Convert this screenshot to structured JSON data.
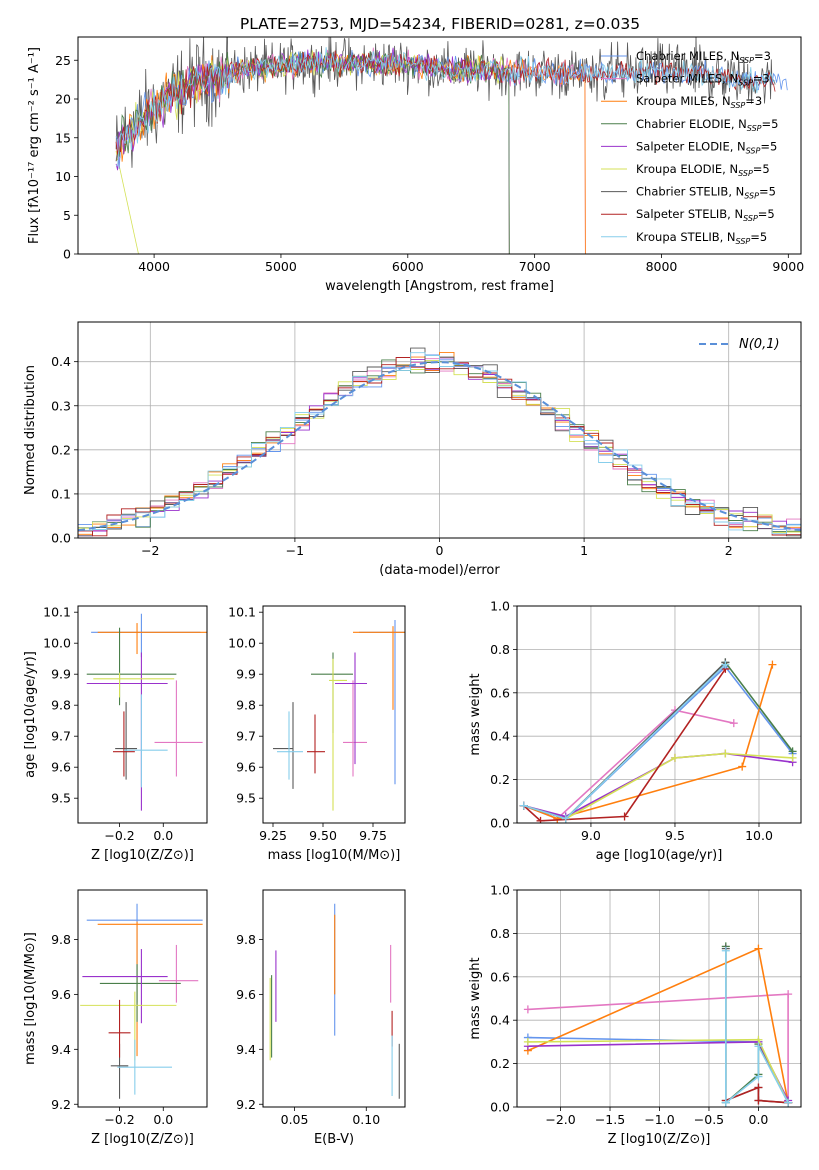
{
  "figure": {
    "title": "PLATE=2753, MJD=54234, FIBERID=0281, z=0.035",
    "colors": [
      "#6495ed",
      "#e377c2",
      "#ff7f0e",
      "#4a7f4a",
      "#9932cc",
      "#d4e157",
      "#5a5a5a",
      "#b22222",
      "#87ceeb"
    ]
  },
  "chart_data": [
    {
      "id": "spectrum",
      "type": "line",
      "xlabel": "wavelength [Angstrom, rest frame]",
      "ylabel": "Flux [fλ10⁻¹⁷ erg cm⁻² s⁻¹ A⁻¹]",
      "xlim": [
        3400,
        9100
      ],
      "ylim": [
        0,
        28
      ],
      "xticks": [
        4000,
        5000,
        6000,
        7000,
        8000,
        9000
      ],
      "yticks": [
        0,
        5,
        10,
        15,
        20,
        25
      ],
      "legend": "top-right",
      "continuum": {
        "x": [
          3700,
          3800,
          3900,
          4000,
          4100,
          4200,
          4300,
          4400,
          4500,
          4600,
          4800,
          5000,
          5200,
          5400,
          5600,
          5800,
          6000,
          6200,
          6400,
          6600,
          6800,
          7000,
          7200,
          7400,
          7600,
          7800,
          8000,
          8200,
          8400,
          8600,
          8800
        ],
        "y": [
          13,
          16,
          17,
          19,
          20,
          21,
          22,
          22.5,
          23,
          23.5,
          24,
          24.2,
          24.5,
          24.8,
          24.6,
          24.7,
          24.5,
          24,
          23.7,
          23.8,
          23.6,
          23.5,
          23.3,
          23.2,
          23.4,
          23.5,
          23.6,
          23.3,
          23,
          22.6,
          22.3
        ]
      },
      "series": [
        {
          "name": "Chabrier MILES, N_SSP=3",
          "end": 9000
        },
        {
          "name": "Salpeter MILES, N_SSP=3",
          "end": 7400
        },
        {
          "name": "Kroupa MILES, N_SSP=3",
          "end": 7400
        },
        {
          "name": "Chabrier ELODIE, N_SSP=5",
          "end": 6800
        },
        {
          "name": "Salpeter ELODIE, N_SSP=5",
          "end": 6800
        },
        {
          "name": "Kroupa ELODIE, N_SSP=5",
          "end": 6800
        },
        {
          "name": "Chabrier STELIB, N_SSP=5",
          "end": 8900
        },
        {
          "name": "Salpeter STELIB, N_SSP=5",
          "end": 8900
        },
        {
          "name": "Kroupa STELIB, N_SSP=5",
          "end": 8900
        }
      ]
    },
    {
      "id": "residuals",
      "type": "histogram",
      "xlabel": "(data-model)/error",
      "ylabel": "Normed distribution",
      "xlim": [
        -2.5,
        2.5
      ],
      "ylim": [
        0,
        0.49
      ],
      "xticks": [
        -2,
        -1,
        0,
        1,
        2
      ],
      "yticks": [
        0.0,
        0.1,
        0.2,
        0.3,
        0.4
      ],
      "grid": true,
      "legend_label": "N(0,1)",
      "bin_width": 0.1,
      "bin_start": -2.5
    },
    {
      "id": "age_vs_Z",
      "type": "errorbar",
      "xlabel": "Z [log10(Z/Z⊙)]",
      "ylabel": "age  [log10(age/yr)]",
      "xlim": [
        -0.39,
        0.2
      ],
      "ylim": [
        9.42,
        10.12
      ],
      "xticks": [
        -0.2,
        0.0
      ],
      "yticks": [
        9.5,
        9.6,
        9.7,
        9.8,
        9.9,
        10.0,
        10.1
      ],
      "points": [
        {
          "x": -0.1,
          "xerr": [
            0.23,
            0.27
          ],
          "y": 10.035,
          "yerr": [
            0.08,
            0.06
          ]
        },
        {
          "x": 0.06,
          "xerr": [
            0.1,
            0.12
          ],
          "y": 9.68,
          "yerr": [
            0.11,
            0.2
          ]
        },
        {
          "x": -0.12,
          "xerr": [
            0.18,
            0.32
          ],
          "y": 10.035,
          "yerr": [
            0.07,
            0.03
          ]
        },
        {
          "x": -0.2,
          "xerr": [
            0.15,
            0.26
          ],
          "y": 9.9,
          "yerr": [
            0.1,
            0.15
          ]
        },
        {
          "x": -0.1,
          "xerr": [
            0.25,
            0.12
          ],
          "y": 9.87,
          "yerr": [
            0.41,
            0.1
          ]
        },
        {
          "x": -0.2,
          "xerr": [
            0.12,
            0.25
          ],
          "y": 9.885,
          "yerr": [
            0.06,
            0.02
          ]
        },
        {
          "x": -0.17,
          "xerr": [
            0.05,
            0.05
          ],
          "y": 9.66,
          "yerr": [
            0.1,
            0.15
          ]
        },
        {
          "x": -0.18,
          "xerr": [
            0.05,
            0.05
          ],
          "y": 9.65,
          "yerr": [
            0.08,
            0.13
          ]
        },
        {
          "x": -0.1,
          "xerr": [
            0.08,
            0.12
          ],
          "y": 9.655,
          "yerr": [
            0.12,
            0.18
          ]
        }
      ]
    },
    {
      "id": "age_vs_mass",
      "type": "errorbar",
      "xlabel": "mass [log10(M/M⊙)]",
      "ylabel": "",
      "xlim": [
        9.2,
        9.91
      ],
      "ylim": [
        9.42,
        10.12
      ],
      "xticks": [
        9.25,
        9.5,
        9.75
      ],
      "yticks": [
        9.5,
        9.6,
        9.7,
        9.8,
        9.9,
        10.0,
        10.1
      ],
      "points": [
        {
          "x": 9.86,
          "xerr": [
            0.18,
            0.12
          ],
          "y": 10.035,
          "yerr": [
            0.49,
            0.04
          ]
        },
        {
          "x": 9.65,
          "xerr": [
            0.05,
            0.07
          ],
          "y": 9.68,
          "yerr": [
            0.11,
            0.2
          ]
        },
        {
          "x": 9.85,
          "xerr": [
            0.2,
            0.1
          ],
          "y": 10.035,
          "yerr": [
            0.25,
            0.02
          ]
        },
        {
          "x": 9.55,
          "xerr": [
            0.11,
            0.1
          ],
          "y": 9.9,
          "yerr": [
            0.19,
            0.07
          ]
        },
        {
          "x": 9.66,
          "xerr": [
            0.1,
            0.06
          ],
          "y": 9.87,
          "yerr": [
            0.26,
            0.1
          ]
        },
        {
          "x": 9.55,
          "xerr": [
            0.02,
            0.07
          ],
          "y": 9.88,
          "yerr": [
            0.42,
            0.07
          ]
        },
        {
          "x": 9.35,
          "xerr": [
            0.1,
            0.0
          ],
          "y": 9.66,
          "yerr": [
            0.13,
            0.15
          ]
        },
        {
          "x": 9.46,
          "xerr": [
            0.04,
            0.05
          ],
          "y": 9.65,
          "yerr": [
            0.07,
            0.12
          ]
        },
        {
          "x": 9.33,
          "xerr": [
            0.06,
            0.07
          ],
          "y": 9.65,
          "yerr": [
            0.09,
            0.13
          ]
        }
      ]
    },
    {
      "id": "weight_vs_age",
      "type": "line",
      "xlabel": "age  [log10(age/yr)]",
      "ylabel": "mass weight",
      "xlim": [
        8.56,
        10.25
      ],
      "ylim": [
        0,
        1
      ],
      "xticks": [
        9.0,
        9.5,
        10.0
      ],
      "yticks": [
        0.0,
        0.2,
        0.4,
        0.6,
        0.8,
        1.0
      ],
      "grid": true,
      "series": [
        {
          "x": [
            8.6,
            8.85,
            9.8,
            10.2
          ],
          "y": [
            0.08,
            0.02,
            0.72,
            0.32
          ]
        },
        {
          "x": [
            8.6,
            8.8,
            9.5,
            9.85
          ],
          "y": [
            0.08,
            0.02,
            0.52,
            0.46
          ]
        },
        {
          "x": [
            8.6,
            8.8,
            9.9,
            10.08
          ],
          "y": [
            0.08,
            0.02,
            0.26,
            0.73
          ]
        },
        {
          "x": [
            8.6,
            8.85,
            9.8,
            10.2
          ],
          "y": [
            0.08,
            0.02,
            0.74,
            0.33
          ]
        },
        {
          "x": [
            8.6,
            8.85,
            9.5,
            9.8,
            10.2
          ],
          "y": [
            0.08,
            0.03,
            0.3,
            0.32,
            0.28
          ]
        },
        {
          "x": [
            8.6,
            8.85,
            9.5,
            9.8,
            10.2
          ],
          "y": [
            0.08,
            0.02,
            0.3,
            0.32,
            0.3
          ]
        },
        {
          "x": [
            8.6,
            8.85,
            9.8
          ],
          "y": [
            0.08,
            0.02,
            0.74
          ]
        },
        {
          "x": [
            8.6,
            8.7,
            9.2,
            9.8
          ],
          "y": [
            0.08,
            0.01,
            0.03,
            0.71
          ]
        },
        {
          "x": [
            8.6,
            8.85,
            9.8
          ],
          "y": [
            0.08,
            0.02,
            0.73
          ]
        }
      ]
    },
    {
      "id": "mass_vs_Z",
      "type": "errorbar",
      "xlabel": "Z [log10(Z/Z⊙)]",
      "ylabel": "mass [log10(M/M⊙)]",
      "xlim": [
        -0.39,
        0.2
      ],
      "ylim": [
        9.19,
        9.98
      ],
      "xticks": [
        -0.2,
        0.0
      ],
      "yticks": [
        9.2,
        9.4,
        9.6,
        9.8
      ],
      "points": [
        {
          "x": -0.12,
          "xerr": [
            0.23,
            0.3
          ],
          "y": 9.87,
          "yerr": [
            0.3,
            0.06
          ]
        },
        {
          "x": 0.06,
          "xerr": [
            0.08,
            0.1
          ],
          "y": 9.65,
          "yerr": [
            0.08,
            0.13
          ]
        },
        {
          "x": -0.12,
          "xerr": [
            0.18,
            0.3
          ],
          "y": 9.855,
          "yerr": [
            0.48,
            0.01
          ]
        },
        {
          "x": -0.12,
          "xerr": [
            0.17,
            0.2
          ],
          "y": 9.64,
          "yerr": [
            0.14,
            0.07
          ]
        },
        {
          "x": -0.1,
          "xerr": [
            0.27,
            0.12
          ],
          "y": 9.665,
          "yerr": [
            0.17,
            0.1
          ]
        },
        {
          "x": -0.13,
          "xerr": [
            0.25,
            0.19
          ],
          "y": 9.56,
          "yerr": [
            0.2,
            0.05
          ]
        },
        {
          "x": -0.2,
          "xerr": [
            0.04,
            0.04
          ],
          "y": 9.34,
          "yerr": [
            0.12,
            0.08
          ]
        },
        {
          "x": -0.2,
          "xerr": [
            0.05,
            0.05
          ],
          "y": 9.46,
          "yerr": [
            0.09,
            0.12
          ]
        },
        {
          "x": -0.13,
          "xerr": [
            0.08,
            0.17
          ],
          "y": 9.335,
          "yerr": [
            0.1,
            0.1
          ]
        }
      ]
    },
    {
      "id": "mass_vs_EBV",
      "type": "errorbar",
      "xlabel": "E(B-V)",
      "ylabel": "",
      "xlim": [
        0.028,
        0.127
      ],
      "ylim": [
        9.19,
        9.98
      ],
      "xticks": [
        0.05,
        0.1
      ],
      "yticks": [
        9.2,
        9.4,
        9.6,
        9.8
      ],
      "points": [
        {
          "x": 0.078,
          "y": 9.65,
          "yerr": [
            0.2,
            0.28
          ]
        },
        {
          "x": 0.117,
          "y": 9.65,
          "yerr": [
            0.08,
            0.13
          ]
        },
        {
          "x": 0.078,
          "y": 9.8,
          "yerr": [
            0.2,
            0.09
          ]
        },
        {
          "x": 0.034,
          "y": 9.55,
          "yerr": [
            0.18,
            0.12
          ]
        },
        {
          "x": 0.037,
          "y": 9.63,
          "yerr": [
            0.13,
            0.13
          ]
        },
        {
          "x": 0.033,
          "y": 9.5,
          "yerr": [
            0.14,
            0.16
          ]
        },
        {
          "x": 0.123,
          "y": 9.32,
          "yerr": [
            0.1,
            0.1
          ]
        },
        {
          "x": 0.118,
          "y": 9.47,
          "yerr": [
            0.06,
            0.07
          ]
        },
        {
          "x": 0.118,
          "y": 9.33,
          "yerr": [
            0.1,
            0.12
          ]
        }
      ]
    },
    {
      "id": "weight_vs_Z",
      "type": "line",
      "xlabel": "Z [log10(Z/Z⊙)]",
      "ylabel": "mass weight",
      "xlim": [
        -2.44,
        0.43
      ],
      "ylim": [
        0,
        1
      ],
      "xticks": [
        -2.0,
        -1.5,
        -1.0,
        -0.5,
        0.0
      ],
      "yticks": [
        0.0,
        0.2,
        0.4,
        0.6,
        0.8,
        1.0
      ],
      "grid": true,
      "series": [
        {
          "x": [
            -2.33,
            0.0,
            0.3
          ],
          "y": [
            0.32,
            0.3,
            0.02
          ]
        },
        {
          "x": [
            -2.33,
            0.3,
            0.3
          ],
          "y": [
            0.45,
            0.52,
            0.02
          ]
        },
        {
          "x": [
            -2.33,
            0.0,
            0.3
          ],
          "y": [
            0.26,
            0.73,
            0.02
          ]
        },
        {
          "x": [
            -0.33,
            -0.33,
            0.0,
            0.0,
            0.3
          ],
          "y": [
            0.74,
            0.02,
            0.15,
            0.29,
            0.02
          ]
        },
        {
          "x": [
            -2.33,
            0.0,
            0.3
          ],
          "y": [
            0.28,
            0.3,
            0.03
          ]
        },
        {
          "x": [
            -2.33,
            0.0,
            0.3
          ],
          "y": [
            0.3,
            0.31,
            0.02
          ]
        },
        {
          "x": [
            -0.33,
            -0.33,
            0.0,
            0.0,
            0.3
          ],
          "y": [
            0.73,
            0.03,
            0.09,
            0.03,
            0.02
          ]
        },
        {
          "x": [
            -0.33,
            0.0,
            0.0,
            0.3
          ],
          "y": [
            0.03,
            0.09,
            0.03,
            0.02
          ]
        },
        {
          "x": [
            -0.33,
            -0.33,
            0.0,
            0.0,
            0.3
          ],
          "y": [
            0.72,
            0.02,
            0.14,
            0.28,
            0.02
          ]
        }
      ]
    }
  ]
}
